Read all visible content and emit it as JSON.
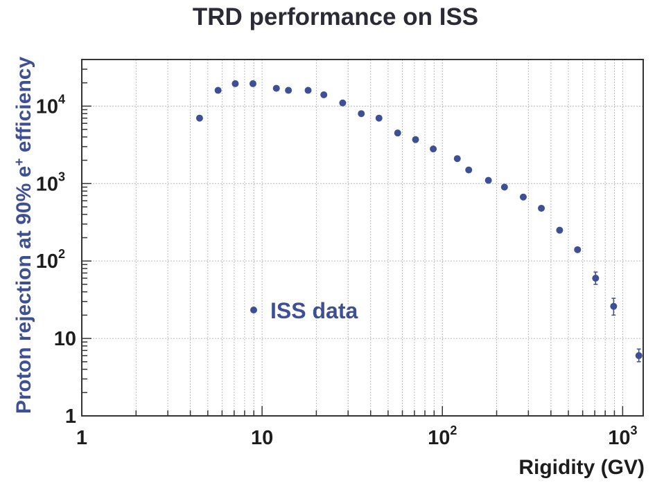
{
  "chart_data": {
    "type": "scatter",
    "title": "TRD performance on ISS",
    "xlabel": "Rigidity (GV)",
    "ylabel_main": "Proton rejection at 90% e",
    "ylabel_sup": "+",
    "ylabel_tail": " efficiency",
    "x_scale": "log",
    "y_scale": "log",
    "xlim": [
      1,
      1300
    ],
    "ylim": [
      1,
      40000
    ],
    "grid": true,
    "legend_placement": "center-left",
    "x_tick_labels": [
      {
        "value": 1,
        "base": "1",
        "sup": ""
      },
      {
        "value": 10,
        "base": "10",
        "sup": ""
      },
      {
        "value": 100,
        "base": "10",
        "sup": "2"
      },
      {
        "value": 1000,
        "base": "10",
        "sup": "3"
      }
    ],
    "y_tick_labels": [
      {
        "value": 1,
        "base": "1",
        "sup": ""
      },
      {
        "value": 10,
        "base": "10",
        "sup": ""
      },
      {
        "value": 100,
        "base": "10",
        "sup": "2"
      },
      {
        "value": 1000,
        "base": "10",
        "sup": "3"
      },
      {
        "value": 10000,
        "base": "10",
        "sup": "4"
      }
    ],
    "colors": {
      "marker": "#3d4f95",
      "label": "#3d4f95"
    },
    "series": [
      {
        "name": "ISS data",
        "points": [
          {
            "x": 4.5,
            "y": 7000
          },
          {
            "x": 5.7,
            "y": 16000
          },
          {
            "x": 7.1,
            "y": 19500
          },
          {
            "x": 8.9,
            "y": 19500
          },
          {
            "x": 12.0,
            "y": 17000
          },
          {
            "x": 14.0,
            "y": 16000
          },
          {
            "x": 18.0,
            "y": 16000
          },
          {
            "x": 22.0,
            "y": 14000
          },
          {
            "x": 28.0,
            "y": 11000
          },
          {
            "x": 35.5,
            "y": 8000
          },
          {
            "x": 44.5,
            "y": 7000
          },
          {
            "x": 56.5,
            "y": 4500
          },
          {
            "x": 71.0,
            "y": 3700
          },
          {
            "x": 89.0,
            "y": 2800
          },
          {
            "x": 121,
            "y": 2100
          },
          {
            "x": 140,
            "y": 1500
          },
          {
            "x": 180,
            "y": 1100
          },
          {
            "x": 221,
            "y": 900
          },
          {
            "x": 281,
            "y": 670
          },
          {
            "x": 354,
            "y": 480
          },
          {
            "x": 447,
            "y": 250
          },
          {
            "x": 562,
            "y": 140
          },
          {
            "x": 708,
            "y": 60,
            "ylow": 50,
            "yhigh": 72
          },
          {
            "x": 891,
            "y": 26,
            "ylow": 20,
            "yhigh": 33
          },
          {
            "x": 1230,
            "y": 6,
            "ylow": 5,
            "yhigh": 7.3
          }
        ]
      }
    ]
  }
}
